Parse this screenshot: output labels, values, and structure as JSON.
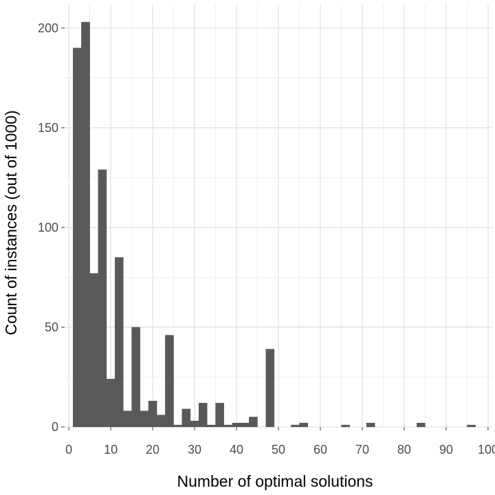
{
  "chart_data": {
    "type": "bar",
    "subtype": "histogram",
    "title": "",
    "xlabel": "Number of optimal solutions",
    "ylabel": "Count of instances (out of 1000)",
    "bin_width": 2,
    "xlim": [
      -1,
      101
    ],
    "ylim": [
      0,
      212
    ],
    "x_ticks": [
      0,
      10,
      20,
      30,
      40,
      50,
      60,
      70,
      80,
      90,
      100
    ],
    "y_ticks": [
      0,
      50,
      100,
      150,
      200
    ],
    "grid": true,
    "bar_color": "#595959",
    "grid_color": "#dedede",
    "bins": [
      {
        "x": 2,
        "value": 190
      },
      {
        "x": 4,
        "value": 203
      },
      {
        "x": 6,
        "value": 77
      },
      {
        "x": 8,
        "value": 129
      },
      {
        "x": 10,
        "value": 24
      },
      {
        "x": 12,
        "value": 85
      },
      {
        "x": 14,
        "value": 8
      },
      {
        "x": 16,
        "value": 50
      },
      {
        "x": 18,
        "value": 8
      },
      {
        "x": 20,
        "value": 13
      },
      {
        "x": 22,
        "value": 6
      },
      {
        "x": 24,
        "value": 46
      },
      {
        "x": 26,
        "value": 1
      },
      {
        "x": 28,
        "value": 9
      },
      {
        "x": 30,
        "value": 3
      },
      {
        "x": 32,
        "value": 12
      },
      {
        "x": 34,
        "value": 1
      },
      {
        "x": 36,
        "value": 12
      },
      {
        "x": 38,
        "value": 1
      },
      {
        "x": 40,
        "value": 2
      },
      {
        "x": 42,
        "value": 2
      },
      {
        "x": 44,
        "value": 5
      },
      {
        "x": 48,
        "value": 39
      },
      {
        "x": 54,
        "value": 1
      },
      {
        "x": 56,
        "value": 2
      },
      {
        "x": 66,
        "value": 1
      },
      {
        "x": 72,
        "value": 2
      },
      {
        "x": 84,
        "value": 2
      },
      {
        "x": 96,
        "value": 1
      }
    ]
  }
}
